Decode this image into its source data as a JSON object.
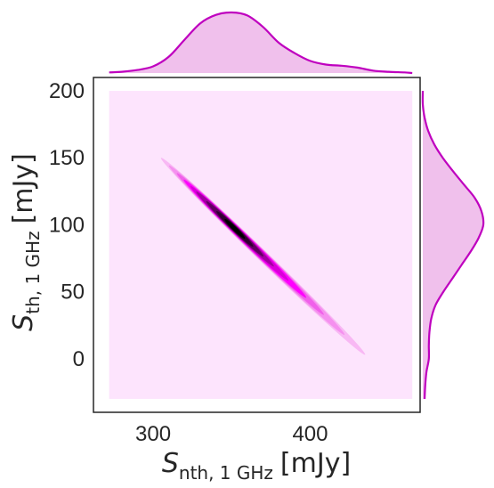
{
  "chart_data": {
    "type": "kde-jointplot",
    "title": "",
    "xlabel": {
      "symbol": "S",
      "sub": "nth, 1 GHz",
      "unit": "[mJy]"
    },
    "ylabel": {
      "symbol": "S",
      "sub": "th, 1 GHz",
      "unit": "[mJy]"
    },
    "xlim": [
      262,
      470
    ],
    "ylim": [
      -40,
      210
    ],
    "xticks": [
      300,
      400
    ],
    "yticks": [
      0,
      50,
      100,
      150,
      200
    ],
    "grid": false,
    "legend": "none",
    "colors": {
      "line": "#bf00bf",
      "fill": "#f0c0ec",
      "background": "#fde4fd",
      "dense": "#000000",
      "mid": "#ff00ff"
    },
    "joint_region": {
      "x": [
        272,
        465
      ],
      "y": [
        -30,
        200
      ]
    },
    "joint_ridge": {
      "start": [
        305,
        150
      ],
      "end": [
        435,
        3
      ],
      "peak": [
        352,
        97
      ]
    },
    "marginal_x": {
      "x": [
        272,
        280,
        290,
        300,
        310,
        320,
        330,
        340,
        350,
        360,
        370,
        380,
        390,
        400,
        410,
        420,
        430,
        440,
        450,
        460,
        465
      ],
      "density": [
        0.01,
        0.02,
        0.05,
        0.11,
        0.27,
        0.55,
        0.82,
        0.96,
        1.0,
        0.95,
        0.76,
        0.5,
        0.33,
        0.2,
        0.14,
        0.12,
        0.09,
        0.04,
        0.02,
        0.01,
        0.0
      ]
    },
    "marginal_y": {
      "y": [
        -30,
        -20,
        -10,
        0,
        10,
        20,
        30,
        40,
        50,
        60,
        70,
        80,
        90,
        100,
        110,
        120,
        130,
        140,
        150,
        160,
        170,
        180,
        190,
        200
      ],
      "density": [
        0.03,
        0.04,
        0.06,
        0.1,
        0.1,
        0.11,
        0.14,
        0.21,
        0.34,
        0.49,
        0.64,
        0.79,
        0.92,
        1.0,
        0.97,
        0.86,
        0.68,
        0.5,
        0.33,
        0.19,
        0.09,
        0.03,
        0.0,
        0.0
      ]
    }
  }
}
